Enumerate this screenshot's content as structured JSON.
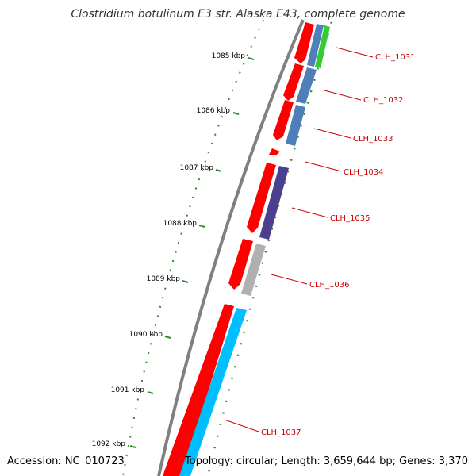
{
  "title": "Clostridium botulinum E3 str. Alaska E43, complete genome",
  "accession_label": "Accession: NC_010723",
  "summary_label": "Topology: circular; Length: 3,659,644 bp; Genes: 3,370",
  "colors": {
    "backbone": "#808080",
    "forward_cds": "#ff0000",
    "tick": "#2e8b2e",
    "label": "#cc0000",
    "cog_blue": "#4f7fb8",
    "cog_green": "#33cc33",
    "cog_purple": "#4b3f8f",
    "cog_grey": "#b0b0b0",
    "cog_cyan": "#00bfff"
  },
  "ruler": {
    "unit": "kbp",
    "ticks": [
      "1085 kbp",
      "1086 kbp",
      "1087 kbp",
      "1088 kbp",
      "1089 kbp",
      "1090 kbp",
      "1091 kbp",
      "1092 kbp"
    ]
  },
  "genes": [
    {
      "label": "CLH_1031"
    },
    {
      "label": "CLH_1032"
    },
    {
      "label": "CLH_1033"
    },
    {
      "label": "CLH_1034"
    },
    {
      "label": "CLH_1035"
    },
    {
      "label": "CLH_1036"
    },
    {
      "label": "CLH_1037"
    }
  ]
}
